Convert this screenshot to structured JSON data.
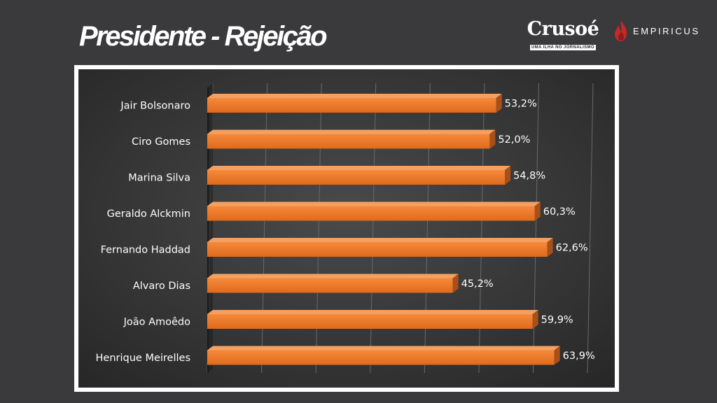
{
  "slide": {
    "title": "Presidente - Rejeição"
  },
  "logos": {
    "crusoe_name": "Crusoé",
    "crusoe_tagline": "UMA ILHA NO JORNALISMO",
    "empiricus_name": "EMPIRICUS",
    "empiricus_icon": "flame-icon"
  },
  "colors": {
    "background": "#3a3a3c",
    "bar": "#f07b2c",
    "plot_background": "#3c3c3c"
  },
  "chart_data": {
    "type": "bar",
    "orientation": "horizontal",
    "categories": [
      "Jair Bolsonaro",
      "Ciro Gomes",
      "Marina Silva",
      "Geraldo Alckmin",
      "Fernando Haddad",
      "Alvaro Dias",
      "João Amoêdo",
      "Henrique Meirelles"
    ],
    "series": [
      {
        "values": [
          53.2,
          52.0,
          54.8,
          60.3,
          62.6,
          45.2,
          59.9,
          63.9
        ],
        "labels": [
          "53,2%",
          "52,0%",
          "54,8%",
          "60,3%",
          "62,6%",
          "45,2%",
          "59,9%",
          "63,9%"
        ]
      }
    ],
    "xlim": [
      0,
      70
    ],
    "grid": true,
    "legend": "none",
    "style": "3d"
  }
}
